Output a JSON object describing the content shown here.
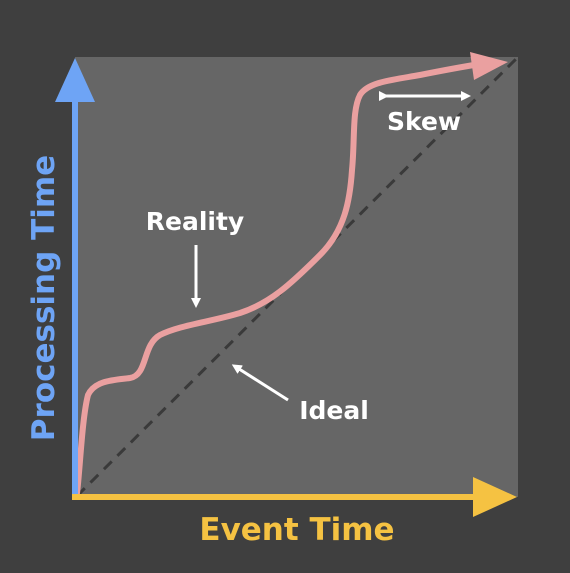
{
  "diagram": {
    "axes": {
      "x_label": "Event Time",
      "y_label": "Processing Time",
      "x_color": "#f5c242",
      "y_color": "#6ea4f5"
    },
    "annotations": {
      "reality": "Reality",
      "ideal": "Ideal",
      "skew": "Skew"
    },
    "colors": {
      "background": "#3f3f3f",
      "plot_area": "#666666",
      "reality_curve": "#eaa0a0",
      "ideal_line": "#3a3a3a",
      "annotation_text": "#ffffff"
    }
  }
}
